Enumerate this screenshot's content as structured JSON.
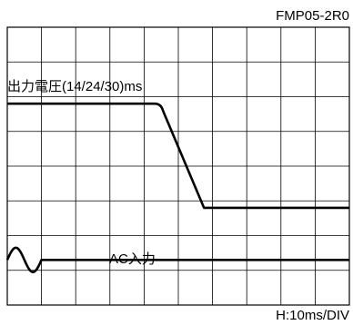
{
  "chart_data": {
    "type": "line",
    "title": "FMP05-2R0",
    "x_scale": "H:10ms/DIV",
    "grid": true,
    "grid_divisions": {
      "x": 10,
      "y": 8
    },
    "series": [
      {
        "name": "出力電圧(14/24/30)ms",
        "description_points_div": [
          [
            0,
            5.8
          ],
          [
            4.3,
            5.8
          ],
          [
            4.55,
            5.6
          ],
          [
            5.75,
            2.8
          ],
          [
            10,
            2.8
          ]
        ]
      },
      {
        "name": "AC入力",
        "description_points_div": [
          [
            0,
            1.3
          ],
          [
            0.25,
            1.65
          ],
          [
            0.5,
            1.3
          ],
          [
            0.75,
            0.7
          ],
          [
            1.0,
            1.3
          ],
          [
            10,
            1.3
          ]
        ]
      }
    ]
  }
}
